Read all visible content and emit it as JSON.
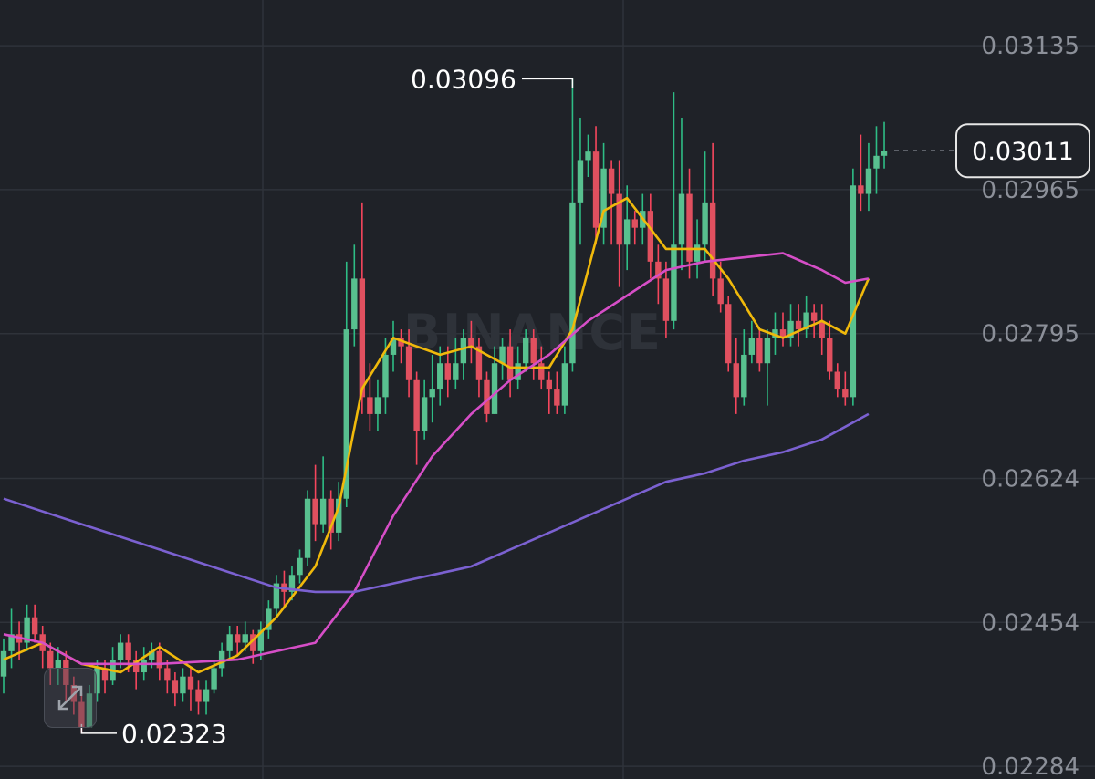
{
  "chart_data": {
    "type": "candlestick",
    "ylim": [
      0.02269,
      0.03189
    ],
    "y_ticks": [
      "0.03135",
      "0.02965",
      "0.02795",
      "0.02624",
      "0.02454",
      "0.02284"
    ],
    "current_price": "0.03011",
    "high_label": "0.03096",
    "low_label": "0.02323",
    "watermark": "BINANCE",
    "candles": [
      [
        0.0239,
        0.0242,
        0.0237,
        0.02435
      ],
      [
        0.0242,
        0.0244,
        0.024,
        0.0247
      ],
      [
        0.0244,
        0.0243,
        0.0241,
        0.02455
      ],
      [
        0.0243,
        0.0246,
        0.0242,
        0.02475
      ],
      [
        0.0246,
        0.0244,
        0.0243,
        0.02475
      ],
      [
        0.0244,
        0.0242,
        0.024,
        0.0245
      ],
      [
        0.0242,
        0.024,
        0.0238,
        0.0243
      ],
      [
        0.024,
        0.0241,
        0.0238,
        0.02425
      ],
      [
        0.0241,
        0.0238,
        0.0236,
        0.0242
      ],
      [
        0.0238,
        0.0236,
        0.02345,
        0.0239
      ],
      [
        0.0236,
        0.0233,
        0.02323,
        0.0237
      ],
      [
        0.0233,
        0.0237,
        0.0233,
        0.0238
      ],
      [
        0.0237,
        0.024,
        0.0236,
        0.0241
      ],
      [
        0.024,
        0.02385,
        0.0237,
        0.0241
      ],
      [
        0.02385,
        0.0241,
        0.0238,
        0.02425
      ],
      [
        0.0241,
        0.0243,
        0.024,
        0.0244
      ],
      [
        0.0243,
        0.0241,
        0.02395,
        0.0244
      ],
      [
        0.0241,
        0.02395,
        0.02375,
        0.0242
      ],
      [
        0.02395,
        0.0241,
        0.02385,
        0.02425
      ],
      [
        0.0241,
        0.0242,
        0.024,
        0.0243
      ],
      [
        0.0242,
        0.024,
        0.02385,
        0.0243
      ],
      [
        0.024,
        0.02385,
        0.0237,
        0.0241
      ],
      [
        0.02385,
        0.0237,
        0.02355,
        0.02395
      ],
      [
        0.0237,
        0.0239,
        0.0236,
        0.024
      ],
      [
        0.0239,
        0.02375,
        0.0235,
        0.024
      ],
      [
        0.02375,
        0.0236,
        0.02345,
        0.02385
      ],
      [
        0.0236,
        0.02375,
        0.02345,
        0.02385
      ],
      [
        0.02375,
        0.024,
        0.0237,
        0.0241
      ],
      [
        0.024,
        0.0242,
        0.0239,
        0.0243
      ],
      [
        0.0242,
        0.0244,
        0.0241,
        0.0245
      ],
      [
        0.0244,
        0.0243,
        0.02415,
        0.0245
      ],
      [
        0.0243,
        0.0244,
        0.0242,
        0.02455
      ],
      [
        0.0244,
        0.0242,
        0.02405,
        0.02445
      ],
      [
        0.0242,
        0.02445,
        0.0241,
        0.02455
      ],
      [
        0.02445,
        0.0247,
        0.02435,
        0.0248
      ],
      [
        0.0247,
        0.025,
        0.0246,
        0.0251
      ],
      [
        0.025,
        0.0249,
        0.0247,
        0.02515
      ],
      [
        0.0249,
        0.0251,
        0.0248,
        0.0252
      ],
      [
        0.0251,
        0.0253,
        0.025,
        0.0254
      ],
      [
        0.0253,
        0.026,
        0.0252,
        0.0261
      ],
      [
        0.026,
        0.0257,
        0.0255,
        0.0264
      ],
      [
        0.0257,
        0.026,
        0.0256,
        0.0265
      ],
      [
        0.026,
        0.0256,
        0.0254,
        0.0261
      ],
      [
        0.0256,
        0.026,
        0.0255,
        0.0262
      ],
      [
        0.026,
        0.028,
        0.0259,
        0.0288
      ],
      [
        0.028,
        0.0286,
        0.0278,
        0.029
      ],
      [
        0.0286,
        0.0272,
        0.027,
        0.0295
      ],
      [
        0.0272,
        0.027,
        0.0268,
        0.0276
      ],
      [
        0.027,
        0.0272,
        0.0268,
        0.0274
      ],
      [
        0.0272,
        0.0277,
        0.027,
        0.0279
      ],
      [
        0.0277,
        0.0279,
        0.0275,
        0.0281
      ],
      [
        0.0279,
        0.0278,
        0.0276,
        0.028
      ],
      [
        0.0278,
        0.0274,
        0.0272,
        0.028
      ],
      [
        0.0274,
        0.0268,
        0.0264,
        0.0275
      ],
      [
        0.0268,
        0.0272,
        0.0267,
        0.0274
      ],
      [
        0.0272,
        0.0273,
        0.0269,
        0.0277
      ],
      [
        0.0273,
        0.0276,
        0.0271,
        0.0278
      ],
      [
        0.0276,
        0.0274,
        0.0272,
        0.0278
      ],
      [
        0.0274,
        0.0276,
        0.0273,
        0.0279
      ],
      [
        0.0276,
        0.0279,
        0.0274,
        0.028
      ],
      [
        0.0279,
        0.0278,
        0.0276,
        0.0281
      ],
      [
        0.0278,
        0.0274,
        0.0272,
        0.0279
      ],
      [
        0.0274,
        0.027,
        0.0269,
        0.0275
      ],
      [
        0.027,
        0.0276,
        0.027,
        0.0278
      ],
      [
        0.0276,
        0.0278,
        0.0274,
        0.0279
      ],
      [
        0.0278,
        0.0274,
        0.0272,
        0.028
      ],
      [
        0.0274,
        0.0276,
        0.0273,
        0.0278
      ],
      [
        0.0276,
        0.0279,
        0.0275,
        0.028
      ],
      [
        0.0279,
        0.0276,
        0.0274,
        0.028
      ],
      [
        0.0276,
        0.0274,
        0.0273,
        0.0278
      ],
      [
        0.0274,
        0.0273,
        0.027,
        0.0275
      ],
      [
        0.0273,
        0.0271,
        0.027,
        0.0275
      ],
      [
        0.0271,
        0.0276,
        0.027,
        0.0278
      ],
      [
        0.0276,
        0.0295,
        0.0275,
        0.03096
      ],
      [
        0.0295,
        0.03,
        0.029,
        0.0305
      ],
      [
        0.03,
        0.0301,
        0.0298,
        0.0303
      ],
      [
        0.0301,
        0.0292,
        0.029,
        0.0304
      ],
      [
        0.0292,
        0.0299,
        0.029,
        0.0302
      ],
      [
        0.0299,
        0.0296,
        0.029,
        0.03
      ],
      [
        0.0296,
        0.029,
        0.0285,
        0.03
      ],
      [
        0.029,
        0.0293,
        0.0287,
        0.0297
      ],
      [
        0.0293,
        0.0292,
        0.029,
        0.0294
      ],
      [
        0.0292,
        0.0294,
        0.029,
        0.0296
      ],
      [
        0.0294,
        0.0288,
        0.0286,
        0.0296
      ],
      [
        0.0288,
        0.0286,
        0.0283,
        0.029
      ],
      [
        0.0286,
        0.0281,
        0.0279,
        0.0288
      ],
      [
        0.0281,
        0.029,
        0.028,
        0.0308
      ],
      [
        0.029,
        0.0296,
        0.0287,
        0.0305
      ],
      [
        0.0296,
        0.0288,
        0.0286,
        0.0299
      ],
      [
        0.0288,
        0.029,
        0.0286,
        0.0293
      ],
      [
        0.029,
        0.0295,
        0.0288,
        0.0301
      ],
      [
        0.0295,
        0.0286,
        0.0284,
        0.0302
      ],
      [
        0.0286,
        0.0283,
        0.0282,
        0.0288
      ],
      [
        0.0283,
        0.0276,
        0.0275,
        0.0284
      ],
      [
        0.0276,
        0.0272,
        0.027,
        0.0279
      ],
      [
        0.0272,
        0.0277,
        0.0271,
        0.028
      ],
      [
        0.0277,
        0.0279,
        0.0276,
        0.0281
      ],
      [
        0.0279,
        0.0276,
        0.0275,
        0.028
      ],
      [
        0.0276,
        0.0279,
        0.0271,
        0.028
      ],
      [
        0.0279,
        0.028,
        0.0277,
        0.0282
      ],
      [
        0.028,
        0.0279,
        0.0278,
        0.0282
      ],
      [
        0.0279,
        0.0281,
        0.0278,
        0.0283
      ],
      [
        0.0281,
        0.028,
        0.0278,
        0.0283
      ],
      [
        0.028,
        0.0282,
        0.0279,
        0.0284
      ],
      [
        0.0282,
        0.0281,
        0.0279,
        0.0283
      ],
      [
        0.0281,
        0.0279,
        0.0277,
        0.0283
      ],
      [
        0.0279,
        0.0275,
        0.0274,
        0.0281
      ],
      [
        0.0275,
        0.0273,
        0.0272,
        0.0276
      ],
      [
        0.0273,
        0.0272,
        0.0271,
        0.0275
      ],
      [
        0.0272,
        0.0297,
        0.0271,
        0.0299
      ],
      [
        0.0297,
        0.0296,
        0.0294,
        0.0303
      ],
      [
        0.0296,
        0.0299,
        0.0294,
        0.0302
      ],
      [
        0.0299,
        0.03005,
        0.0296,
        0.0304
      ],
      [
        0.03005,
        0.03011,
        0.0299,
        0.03045
      ]
    ],
    "series": [
      {
        "color": "#f0b90b",
        "points": [
          [
            0,
            0.0241
          ],
          [
            5,
            0.0243
          ],
          [
            10,
            0.02405
          ],
          [
            15,
            0.02395
          ],
          [
            20,
            0.02425
          ],
          [
            25,
            0.02395
          ],
          [
            30,
            0.02415
          ],
          [
            35,
            0.0246
          ],
          [
            40,
            0.0252
          ],
          [
            43,
            0.0259
          ],
          [
            46,
            0.0273
          ],
          [
            50,
            0.0279
          ],
          [
            53,
            0.0278
          ],
          [
            56,
            0.0277
          ],
          [
            60,
            0.0278
          ],
          [
            65,
            0.02755
          ],
          [
            70,
            0.02755
          ],
          [
            73,
            0.028
          ],
          [
            77,
            0.0294
          ],
          [
            80,
            0.02955
          ],
          [
            85,
            0.02895
          ],
          [
            90,
            0.02895
          ],
          [
            93,
            0.0286
          ],
          [
            97,
            0.028
          ],
          [
            100,
            0.0279
          ],
          [
            105,
            0.0281
          ],
          [
            108,
            0.02795
          ],
          [
            111,
            0.0286
          ]
        ]
      },
      {
        "color": "#d64ec7",
        "points": [
          [
            0,
            0.0244
          ],
          [
            5,
            0.0243
          ],
          [
            10,
            0.02405
          ],
          [
            20,
            0.02405
          ],
          [
            30,
            0.0241
          ],
          [
            40,
            0.0243
          ],
          [
            45,
            0.0249
          ],
          [
            50,
            0.0258
          ],
          [
            55,
            0.0265
          ],
          [
            60,
            0.027
          ],
          [
            65,
            0.0274
          ],
          [
            70,
            0.0277
          ],
          [
            75,
            0.0281
          ],
          [
            80,
            0.0284
          ],
          [
            85,
            0.0287
          ],
          [
            90,
            0.0288
          ],
          [
            95,
            0.02885
          ],
          [
            100,
            0.0289
          ],
          [
            105,
            0.0287
          ],
          [
            108,
            0.02855
          ],
          [
            111,
            0.0286
          ]
        ]
      },
      {
        "color": "#7b61d1",
        "points": [
          [
            0,
            0.026
          ],
          [
            10,
            0.0257
          ],
          [
            20,
            0.0254
          ],
          [
            30,
            0.0251
          ],
          [
            35,
            0.02495
          ],
          [
            40,
            0.0249
          ],
          [
            45,
            0.0249
          ],
          [
            50,
            0.025
          ],
          [
            55,
            0.0251
          ],
          [
            60,
            0.0252
          ],
          [
            65,
            0.0254
          ],
          [
            70,
            0.0256
          ],
          [
            75,
            0.0258
          ],
          [
            80,
            0.026
          ],
          [
            85,
            0.0262
          ],
          [
            90,
            0.0263
          ],
          [
            95,
            0.02645
          ],
          [
            100,
            0.02655
          ],
          [
            105,
            0.0267
          ],
          [
            111,
            0.027
          ]
        ]
      }
    ]
  }
}
